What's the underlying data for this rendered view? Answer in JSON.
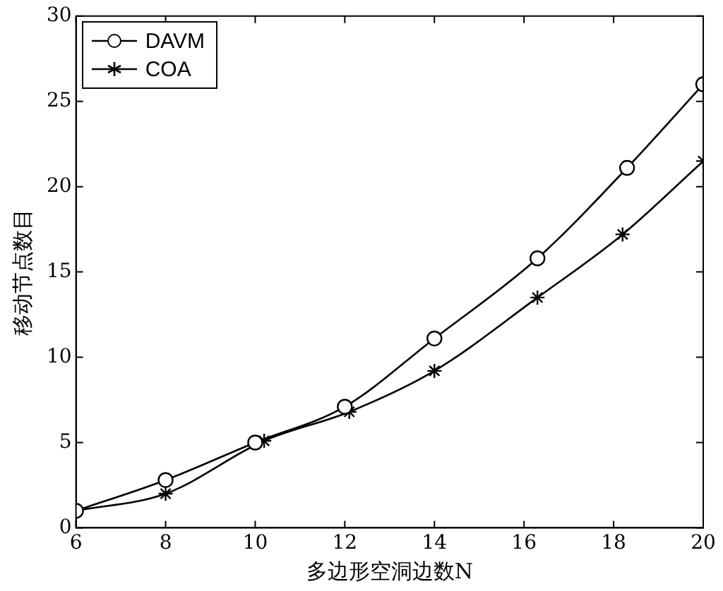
{
  "chart_data": {
    "type": "line",
    "xlabel": "多边形空洞边数N",
    "ylabel": "移动节点数目",
    "xlim": [
      6,
      20
    ],
    "xticks": [
      6,
      8,
      10,
      12,
      14,
      16,
      18,
      20
    ],
    "ylim": [
      0,
      30
    ],
    "yticks": [
      0,
      5,
      10,
      15,
      20,
      25,
      30
    ],
    "grid": false,
    "legend": "top left",
    "line_style": "solid",
    "series": [
      {
        "name": "DAVM",
        "color": "#000000",
        "marker": "circle",
        "x": [
          6,
          8,
          10,
          12,
          14,
          16.3,
          18.3,
          20
        ],
        "values": [
          1,
          2.8,
          5,
          7.1,
          11.1,
          15.8,
          21.1,
          26
        ]
      },
      {
        "name": "COA",
        "color": "#000000",
        "marker": "cross",
        "x": [
          6,
          8,
          10.2,
          12.1,
          14,
          16.3,
          18.2,
          20
        ],
        "values": [
          1,
          2,
          5.1,
          6.8,
          9.2,
          13.5,
          17.2,
          21.5
        ]
      }
    ]
  }
}
